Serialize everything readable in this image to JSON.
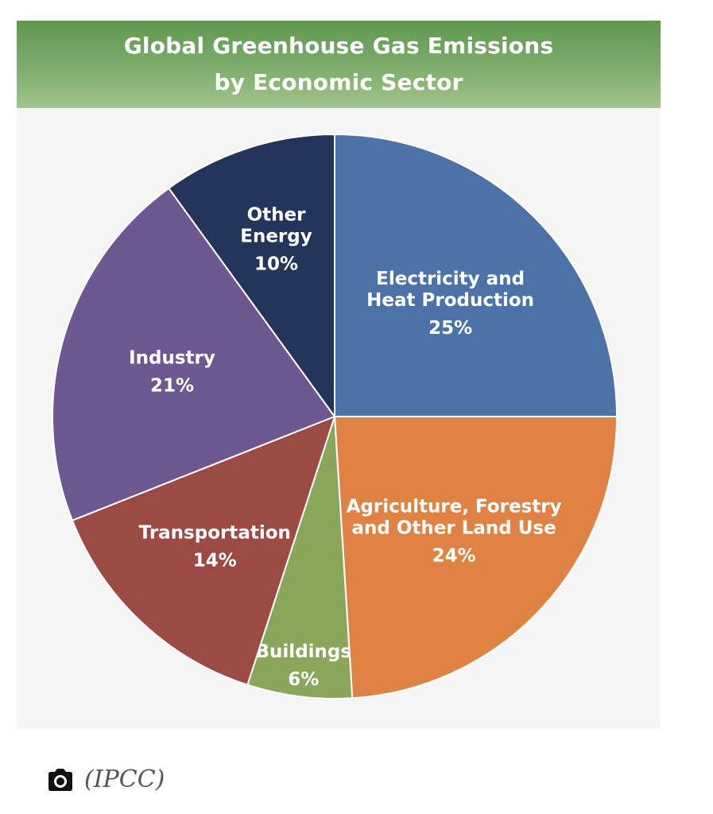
{
  "chart_data": {
    "type": "pie",
    "title_lines": [
      "Global Greenhouse Gas Emissions",
      "by Economic Sector"
    ],
    "slices": [
      {
        "label_lines": [
          "Electricity and",
          "Heat Production"
        ],
        "value": 25,
        "value_label": "25%",
        "color": "#4d72a7"
      },
      {
        "label_lines": [
          "Agriculture, Forestry",
          "and Other Land Use"
        ],
        "value": 24,
        "value_label": "24%",
        "color": "#e08244"
      },
      {
        "label_lines": [
          "Buildings"
        ],
        "value": 6,
        "value_label": "6%",
        "color": "#8aa65a"
      },
      {
        "label_lines": [
          "Transportation"
        ],
        "value": 14,
        "value_label": "14%",
        "color": "#9c4a44"
      },
      {
        "label_lines": [
          "Industry"
        ],
        "value": 21,
        "value_label": "21%",
        "color": "#6e5891"
      },
      {
        "label_lines": [
          "Other",
          "Energy"
        ],
        "value": 10,
        "value_label": "10%",
        "color": "#24355c"
      }
    ]
  },
  "caption": {
    "icon": "camera-icon",
    "text": "(IPCC)"
  },
  "colors": {
    "header_top": "#5f9750",
    "header_bottom": "#a3c48f",
    "plot_background": "#f5f5f5"
  }
}
